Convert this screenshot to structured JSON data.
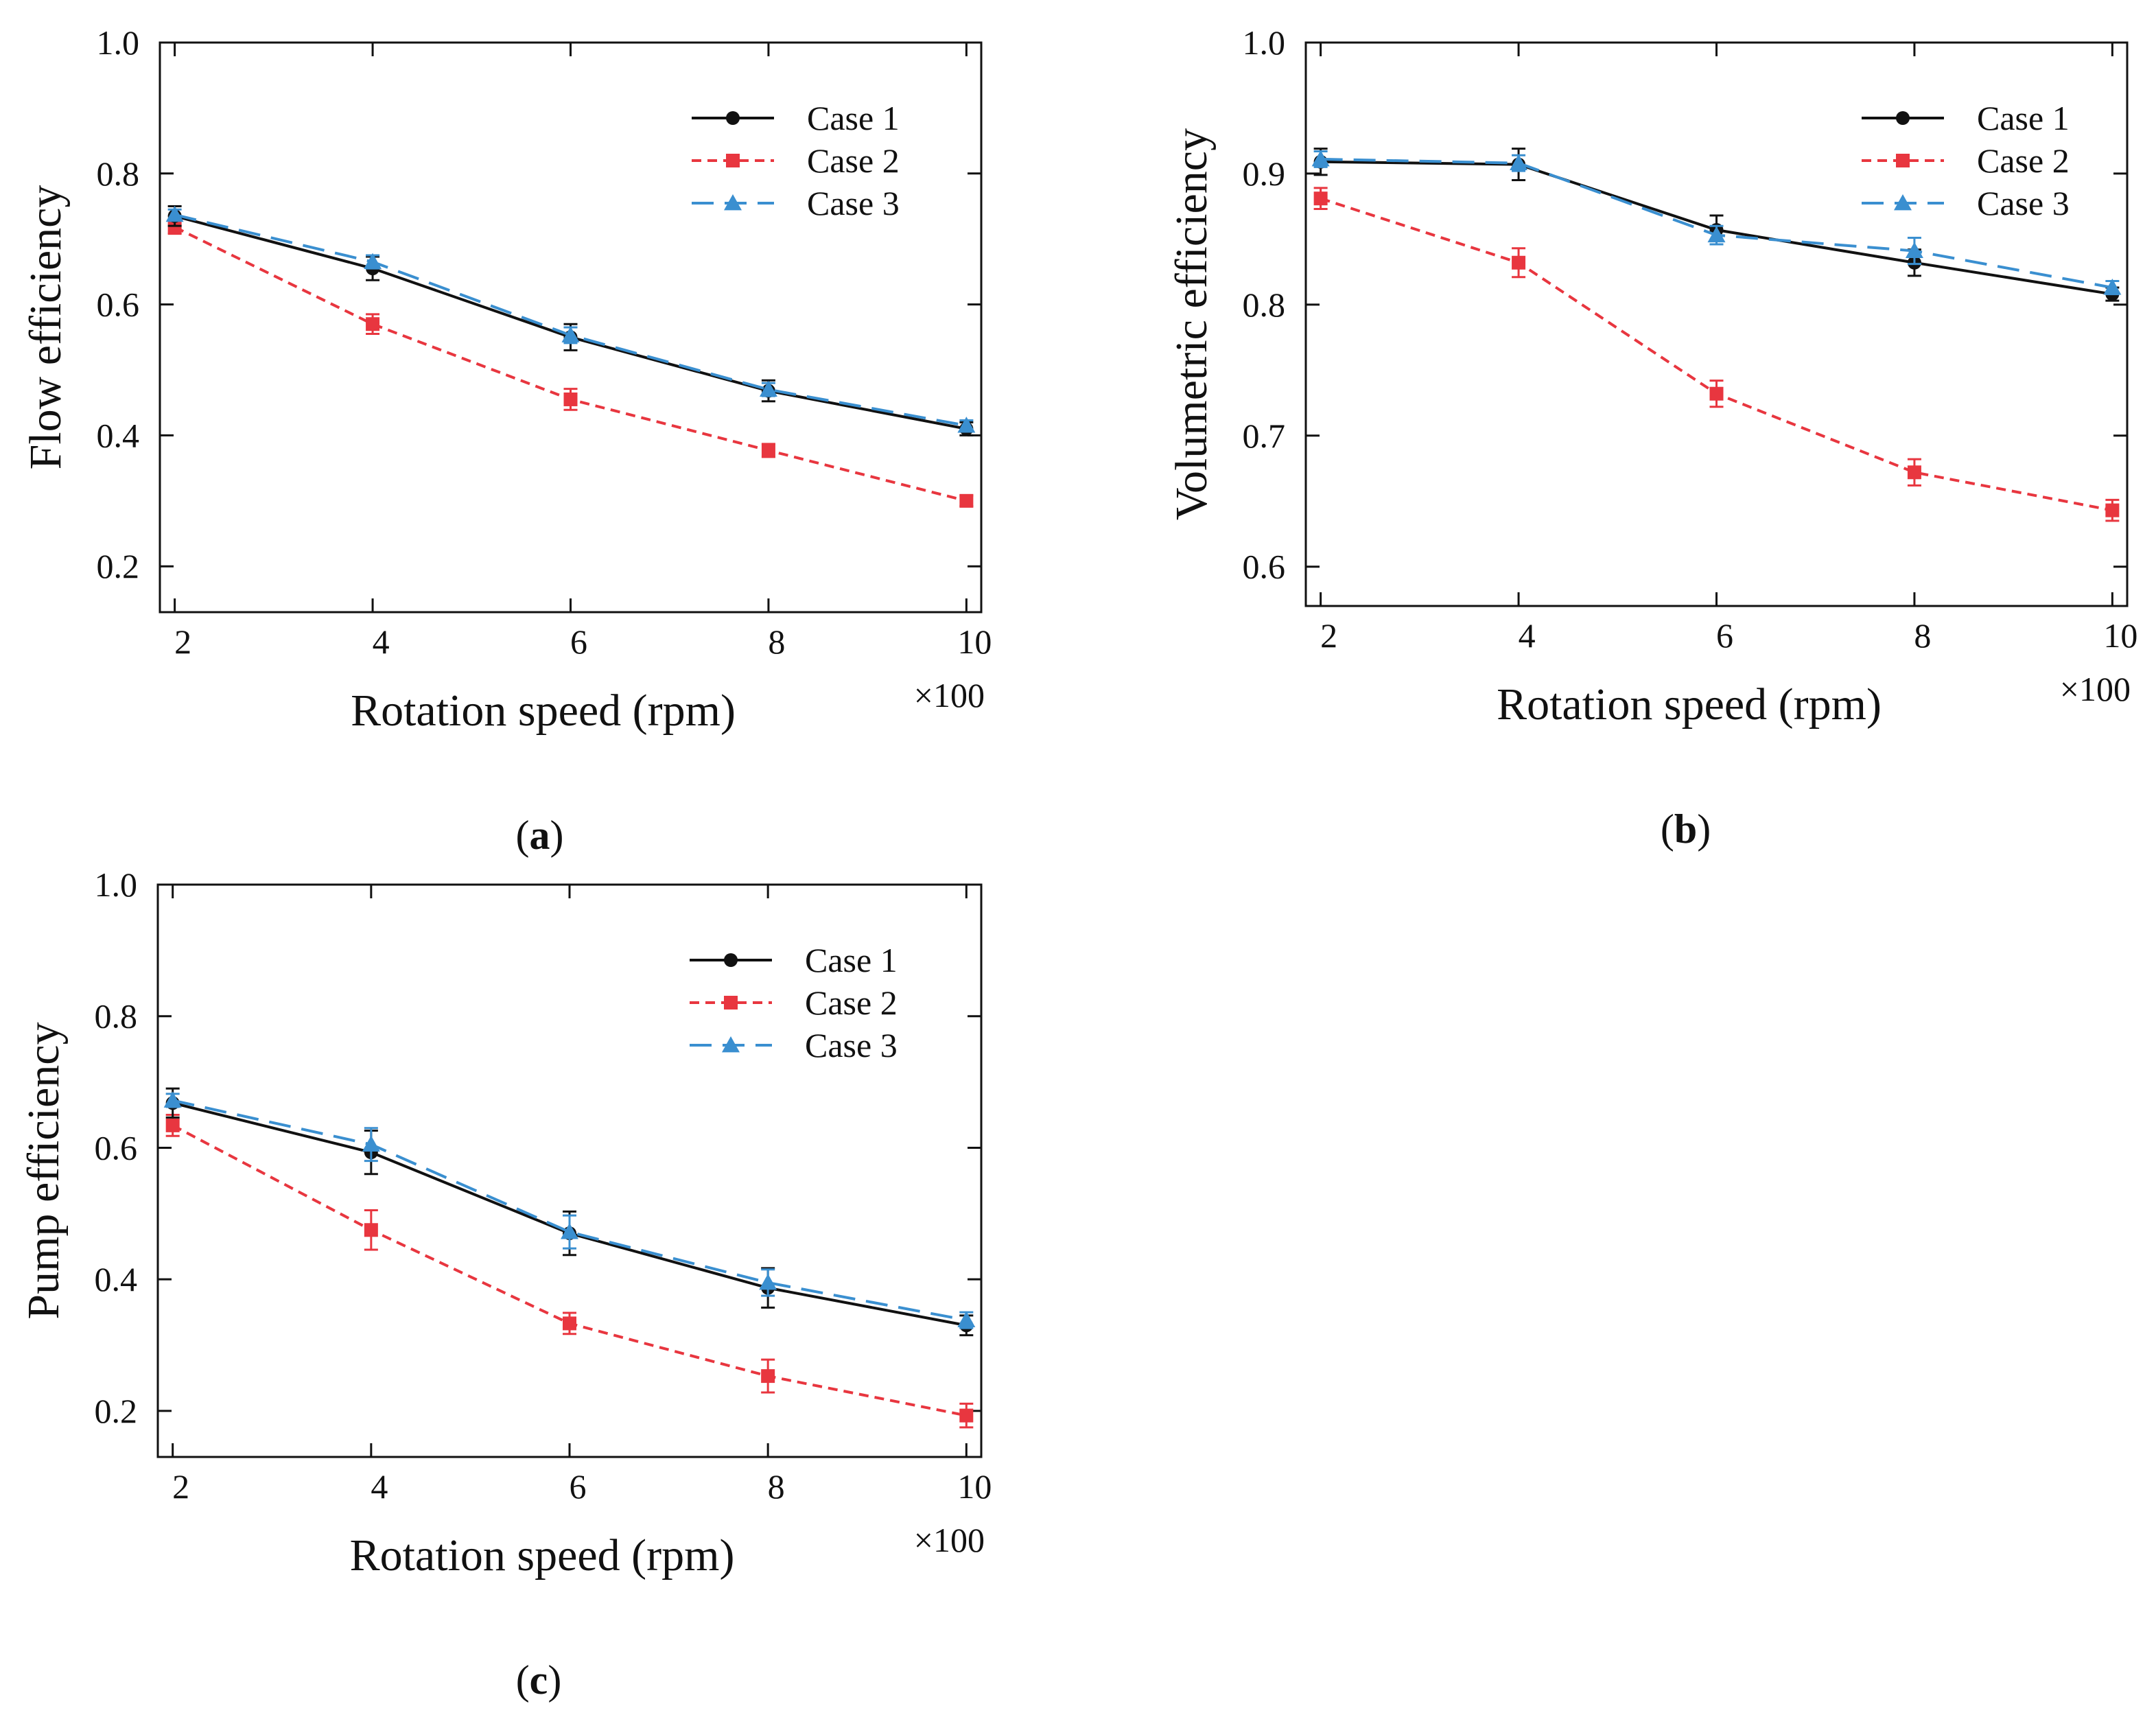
{
  "colors": {
    "case1": "#111111",
    "case2": "#e8363f",
    "case3": "#3a8fd0",
    "axis": "#111111"
  },
  "chart_data": [
    {
      "id": "a",
      "type": "line",
      "panel_label": "a",
      "ylabel": "Flow efficiency",
      "xlabel": "Rotation speed (rpm)",
      "x_multiplier": "×100",
      "xlim": [
        1.85,
        10.15
      ],
      "ylim": [
        0.13,
        1.0
      ],
      "x_ticks": [
        2,
        4,
        6,
        8,
        10
      ],
      "x_tick_labels": [
        "2",
        "4",
        "6",
        "8",
        "10"
      ],
      "y_ticks": [
        0.2,
        0.4,
        0.6,
        0.8,
        1.0
      ],
      "y_tick_labels": [
        "0.2",
        "0.4",
        "0.6",
        "0.8",
        "1.0"
      ],
      "legend_position": "top-right",
      "series": [
        {
          "name": "Case 1",
          "marker": "circle",
          "line": "solid",
          "x": [
            2,
            4,
            6,
            8,
            10
          ],
          "values": [
            0.735,
            0.655,
            0.55,
            0.468,
            0.41
          ],
          "errors": [
            0.015,
            0.018,
            0.02,
            0.016,
            0.01
          ]
        },
        {
          "name": "Case 2",
          "marker": "square",
          "line": "dotted",
          "x": [
            2,
            4,
            6,
            8,
            10
          ],
          "values": [
            0.718,
            0.57,
            0.455,
            0.377,
            0.3
          ],
          "errors": [
            0.01,
            0.015,
            0.016,
            0.01,
            0.008
          ]
        },
        {
          "name": "Case 3",
          "marker": "triangle",
          "line": "dashed",
          "x": [
            2,
            4,
            6,
            8,
            10
          ],
          "values": [
            0.737,
            0.665,
            0.553,
            0.47,
            0.415
          ],
          "errors": [
            0.008,
            0.01,
            0.012,
            0.01,
            0.008
          ]
        }
      ]
    },
    {
      "id": "b",
      "type": "line",
      "panel_label": "b",
      "ylabel": "Volumetric efficiency",
      "xlabel": "Rotation speed (rpm)",
      "x_multiplier": "×100",
      "xlim": [
        1.85,
        10.15
      ],
      "ylim": [
        0.57,
        1.0
      ],
      "x_ticks": [
        2,
        4,
        6,
        8,
        10
      ],
      "x_tick_labels": [
        "2",
        "4",
        "6",
        "8",
        "10"
      ],
      "y_ticks": [
        0.6,
        0.7,
        0.8,
        0.9,
        1.0
      ],
      "y_tick_labels": [
        "0.6",
        "0.7",
        "0.8",
        "0.9",
        "1.0"
      ],
      "legend_position": "top-right",
      "series": [
        {
          "name": "Case 1",
          "marker": "circle",
          "line": "solid",
          "x": [
            2,
            4,
            6,
            8,
            10
          ],
          "values": [
            0.909,
            0.907,
            0.857,
            0.832,
            0.808
          ],
          "errors": [
            0.01,
            0.012,
            0.011,
            0.01,
            0.005
          ]
        },
        {
          "name": "Case 2",
          "marker": "square",
          "line": "dotted",
          "x": [
            2,
            4,
            6,
            8,
            10
          ],
          "values": [
            0.881,
            0.832,
            0.732,
            0.672,
            0.643
          ],
          "errors": [
            0.008,
            0.011,
            0.01,
            0.01,
            0.008
          ]
        },
        {
          "name": "Case 3",
          "marker": "triangle",
          "line": "dashed",
          "x": [
            2,
            4,
            6,
            8,
            10
          ],
          "values": [
            0.911,
            0.908,
            0.853,
            0.841,
            0.813
          ],
          "errors": [
            0.006,
            0.006,
            0.007,
            0.01,
            0.005
          ]
        }
      ]
    },
    {
      "id": "c",
      "type": "line",
      "panel_label": "c",
      "ylabel": "Pump efficiency",
      "xlabel": "Rotation speed (rpm)",
      "x_multiplier": "×100",
      "xlim": [
        1.85,
        10.15
      ],
      "ylim": [
        0.13,
        1.0
      ],
      "x_ticks": [
        2,
        4,
        6,
        8,
        10
      ],
      "x_tick_labels": [
        "2",
        "4",
        "6",
        "8",
        "10"
      ],
      "y_ticks": [
        0.2,
        0.4,
        0.6,
        0.8,
        1.0
      ],
      "y_tick_labels": [
        "0.2",
        "0.4",
        "0.6",
        "0.8",
        "1.0"
      ],
      "legend_position": "top-right",
      "series": [
        {
          "name": "Case 1",
          "marker": "circle",
          "line": "solid",
          "x": [
            2,
            4,
            6,
            8,
            10
          ],
          "values": [
            0.668,
            0.593,
            0.47,
            0.387,
            0.33
          ],
          "errors": [
            0.022,
            0.033,
            0.033,
            0.03,
            0.015
          ]
        },
        {
          "name": "Case 2",
          "marker": "square",
          "line": "dotted",
          "x": [
            2,
            4,
            6,
            8,
            10
          ],
          "values": [
            0.634,
            0.475,
            0.333,
            0.253,
            0.193
          ],
          "errors": [
            0.016,
            0.03,
            0.016,
            0.025,
            0.018
          ]
        },
        {
          "name": "Case 3",
          "marker": "triangle",
          "line": "dashed",
          "x": [
            2,
            4,
            6,
            8,
            10
          ],
          "values": [
            0.672,
            0.605,
            0.472,
            0.395,
            0.338
          ],
          "errors": [
            0.01,
            0.025,
            0.025,
            0.02,
            0.012
          ]
        }
      ]
    }
  ]
}
